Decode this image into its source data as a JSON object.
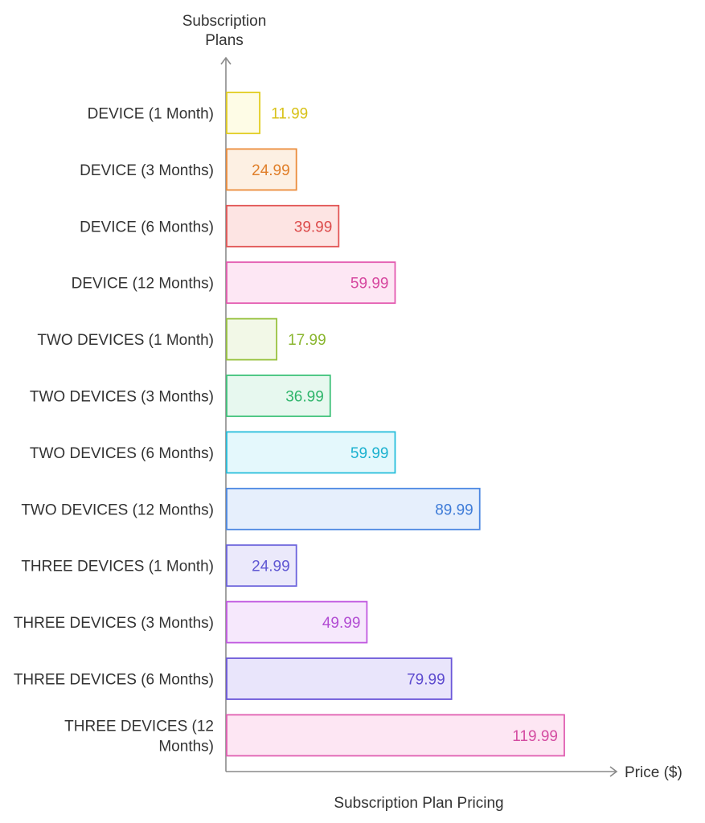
{
  "chart_data": {
    "type": "bar",
    "orientation": "horizontal",
    "title": "Subscription Plan Pricing",
    "ylabel": "Subscription Plans",
    "xlabel": "Price ($)",
    "xlim": [
      0,
      120
    ],
    "grid": false,
    "legend": "none",
    "categories": [
      "DEVICE (1 Month)",
      "DEVICE (3 Months)",
      "DEVICE (6 Months)",
      "DEVICE (12 Months)",
      "TWO DEVICES (1 Month)",
      "TWO DEVICES (3 Months)",
      "TWO DEVICES (6 Months)",
      "TWO DEVICES (12 Months)",
      "THREE DEVICES (1 Month)",
      "THREE DEVICES (3 Months)",
      "THREE DEVICES (6 Months)",
      "THREE DEVICES (12 Months)"
    ],
    "values": [
      11.99,
      24.99,
      39.99,
      59.99,
      17.99,
      36.99,
      59.99,
      89.99,
      24.99,
      49.99,
      79.99,
      119.99
    ],
    "value_labels": [
      "11.99",
      "24.99",
      "39.99",
      "59.99",
      "17.99",
      "36.99",
      "59.99",
      "89.99",
      "24.99",
      "49.99",
      "79.99",
      "119.99"
    ],
    "colors": [
      {
        "stroke": "#e2cc1f",
        "fill": "#fefce6",
        "text": "#d8c21a"
      },
      {
        "stroke": "#eb8d3c",
        "fill": "#fdf0e3",
        "text": "#e07f2a"
      },
      {
        "stroke": "#e25555",
        "fill": "#fde4e3",
        "text": "#dc4b4b"
      },
      {
        "stroke": "#e35bb0",
        "fill": "#fde7f4",
        "text": "#d6479f"
      },
      {
        "stroke": "#98c23f",
        "fill": "#f2f8e7",
        "text": "#8ab62f"
      },
      {
        "stroke": "#3fc27a",
        "fill": "#e7f8ef",
        "text": "#2fb56b"
      },
      {
        "stroke": "#27bedb",
        "fill": "#e4f8fc",
        "text": "#1bb1cf"
      },
      {
        "stroke": "#4c88e2",
        "fill": "#e6effc",
        "text": "#3f7cd8"
      },
      {
        "stroke": "#6b63dc",
        "fill": "#ebe9fb",
        "text": "#5f57d3"
      },
      {
        "stroke": "#c15ae0",
        "fill": "#f6e8fc",
        "text": "#b24dd3"
      },
      {
        "stroke": "#6b57d9",
        "fill": "#e9e5fb",
        "text": "#5d4bcf"
      },
      {
        "stroke": "#e05fb1",
        "fill": "#fde6f3",
        "text": "#d44da2"
      }
    ]
  }
}
